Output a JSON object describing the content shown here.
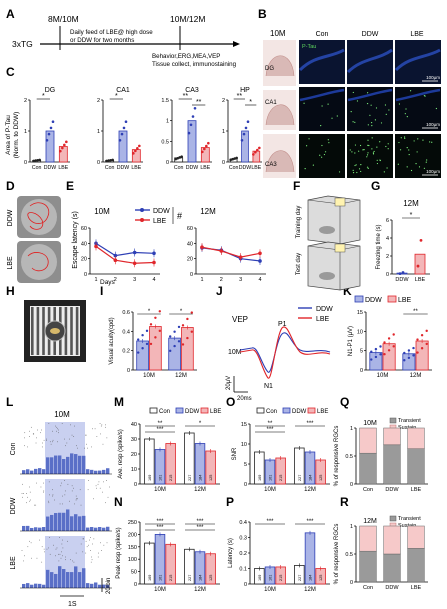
{
  "panels": {
    "A": {
      "letter": "A",
      "age_start": "8M/10M",
      "age_end": "10M/12M",
      "mouse": "3xTG",
      "feed_line1": "Daily feed of LBE@ high dose",
      "feed_line2": "or DDW for two months",
      "tests_line1": "Behavior,ERG,MEA,VEP",
      "tests_line2": "Tissue collect, immunostaining"
    },
    "B": {
      "letter": "B",
      "age": "10M",
      "columns": [
        "Con",
        "DDW",
        "LBE"
      ],
      "regions": [
        "DG",
        "CA1",
        "CA3"
      ],
      "stain": "P-Tau",
      "scale": "100μm"
    },
    "C": {
      "letter": "C",
      "ylabel1": "Area of P-Tau",
      "ylabel2": "(Norm. to DDW)"
    },
    "D": {
      "letter": "D",
      "groups": [
        "DDW",
        "LBE"
      ]
    },
    "E": {
      "letter": "E",
      "ylabel": "Escape latency (s)",
      "xlabel": "Days",
      "hash": "#"
    },
    "F": {
      "letter": "F",
      "rows": [
        "Training day",
        "Test day"
      ]
    },
    "G": {
      "letter": "G"
    },
    "H": {
      "letter": "H"
    },
    "I": {
      "letter": "I"
    },
    "J": {
      "letter": "J",
      "title": "VEP",
      "peak_p1": "P1",
      "peak_n1": "N1",
      "age": "10M",
      "scale_y": "20μV",
      "scale_x": "20ms"
    },
    "K": {
      "letter": "K"
    },
    "L": {
      "letter": "L",
      "age": "10M",
      "rows": [
        "Con",
        "DDW",
        "LBE"
      ],
      "scale_y": "20/bin",
      "scale_x": "1S"
    },
    "M": {
      "letter": "M"
    },
    "N": {
      "letter": "N"
    },
    "O": {
      "letter": "O"
    },
    "P": {
      "letter": "P"
    },
    "Q": {
      "letter": "Q"
    },
    "R": {
      "letter": "R"
    }
  },
  "colors": {
    "con": "#222222",
    "ddw": "#2e3fb5",
    "lbe": "#e0262b",
    "blue_fill": "#aab4e6",
    "red_fill": "#f3b6b8",
    "gray_fill": "#9a9a9a",
    "pink_fill": "#f6c9c9"
  },
  "chart_data": [
    {
      "panel": "C",
      "type": "bar",
      "title": "DG",
      "categories": [
        "Con",
        "DDW",
        "LBE"
      ],
      "values": [
        0.05,
        1.0,
        0.5
      ],
      "ylim": [
        0,
        2
      ],
      "yticks": [
        0,
        1,
        2
      ],
      "sig": [
        {
          "pair": [
            0,
            1
          ],
          "label": "*"
        }
      ]
    },
    {
      "panel": "C",
      "type": "bar",
      "title": "CA1",
      "categories": [
        "Con",
        "DDW",
        "LBE"
      ],
      "values": [
        0.05,
        1.0,
        0.4
      ],
      "ylim": [
        0,
        2
      ],
      "yticks": [
        0,
        1,
        2
      ],
      "sig": [
        {
          "pair": [
            0,
            1
          ],
          "label": "*"
        }
      ]
    },
    {
      "panel": "C",
      "type": "bar",
      "title": "CA3",
      "categories": [
        "Con",
        "DDW",
        "LBE"
      ],
      "values": [
        0.1,
        1.0,
        0.35
      ],
      "ylim": [
        0,
        1.5
      ],
      "yticks": [
        0.0,
        0.5,
        1.0,
        1.5
      ],
      "sig": [
        {
          "pair": [
            0,
            1
          ],
          "label": "**"
        },
        {
          "pair": [
            1,
            2
          ],
          "label": "**"
        }
      ]
    },
    {
      "panel": "C",
      "type": "bar",
      "title": "HP",
      "categories": [
        "Con",
        "DDW",
        "LBE"
      ],
      "values": [
        0.1,
        1.0,
        0.35
      ],
      "ylim": [
        0,
        2
      ],
      "yticks": [
        0,
        1,
        2
      ],
      "sig": [
        {
          "pair": [
            0,
            1
          ],
          "label": "**"
        },
        {
          "pair": [
            1,
            2
          ],
          "label": "*"
        }
      ]
    },
    {
      "panel": "E",
      "type": "line",
      "title": "10M",
      "x": [
        1,
        2,
        3,
        4
      ],
      "ylim": [
        0,
        60
      ],
      "yticks": [
        0,
        20,
        40,
        60
      ],
      "series": [
        {
          "name": "DDW",
          "values": [
            40,
            24,
            28,
            27
          ]
        },
        {
          "name": "LBE",
          "values": [
            36,
            18,
            14,
            15
          ]
        }
      ]
    },
    {
      "panel": "E",
      "type": "line",
      "title": "12M",
      "x": [
        1,
        2,
        3,
        4
      ],
      "ylim": [
        0,
        60
      ],
      "yticks": [
        0,
        20,
        40,
        60
      ],
      "series": [
        {
          "name": "DDW",
          "values": [
            34,
            31,
            20,
            17
          ]
        },
        {
          "name": "LBE",
          "values": [
            35,
            30,
            22,
            27
          ]
        }
      ]
    },
    {
      "panel": "G",
      "type": "bar",
      "title": "12M",
      "ylabel": "Freezing time (s)",
      "categories": [
        "DDW",
        "LBE"
      ],
      "values": [
        0.1,
        2.2
      ],
      "ylim": [
        0,
        6
      ],
      "yticks": [
        0,
        2,
        4,
        6
      ],
      "sig": [
        {
          "pair": [
            0,
            1
          ],
          "label": "*"
        }
      ]
    },
    {
      "panel": "I",
      "type": "bar",
      "ylabel": "Visual acuity(cpd)",
      "categories": [
        "10M",
        "12M"
      ],
      "series": [
        {
          "name": "DDW",
          "values": [
            0.3,
            0.33
          ]
        },
        {
          "name": "LBE",
          "values": [
            0.45,
            0.44
          ]
        }
      ],
      "ylim": [
        0,
        0.6
      ],
      "yticks": [
        0.0,
        0.2,
        0.4,
        0.6
      ],
      "sig_labels": [
        "*",
        "*"
      ]
    },
    {
      "panel": "K",
      "type": "bar",
      "ylabel": "N1-P1 (μV)",
      "categories": [
        "10M",
        "12M"
      ],
      "series": [
        {
          "name": "DDW",
          "values": [
            4.5,
            4.2
          ]
        },
        {
          "name": "LBE",
          "values": [
            6.8,
            7.5
          ]
        }
      ],
      "ylim": [
        0,
        15
      ],
      "yticks": [
        0,
        5,
        10,
        15
      ],
      "sig_labels": [
        "",
        "**"
      ]
    },
    {
      "panel": "M",
      "type": "bar",
      "ylabel": "Ave. resp (spike/s)",
      "categories": [
        "10M",
        "12M"
      ],
      "series": [
        {
          "name": "Con",
          "values": [
            30,
            34
          ]
        },
        {
          "name": "DDW",
          "values": [
            23,
            27
          ]
        },
        {
          "name": "LBE",
          "values": [
            27,
            22
          ]
        }
      ],
      "n_labels": [
        [
          "169",
          "101",
          "215"
        ],
        [
          "227",
          "184",
          "125"
        ]
      ],
      "ylim": [
        0,
        40
      ],
      "yticks": [
        0,
        10,
        20,
        30,
        40
      ],
      "sig_labels": [
        "**",
        "***",
        "*"
      ]
    },
    {
      "panel": "N",
      "type": "bar",
      "ylabel": "Peak resp (spike/s)",
      "categories": [
        "10M",
        "12M"
      ],
      "series": [
        {
          "name": "Con",
          "values": [
            165,
            140
          ]
        },
        {
          "name": "DDW",
          "values": [
            200,
            130
          ]
        },
        {
          "name": "LBE",
          "values": [
            160,
            122
          ]
        }
      ],
      "n_labels": [
        [
          "169",
          "101",
          "215"
        ],
        [
          "227",
          "184",
          "125"
        ]
      ],
      "ylim": [
        0,
        250
      ],
      "yticks": [
        0,
        50,
        100,
        150,
        200,
        250
      ],
      "sig_labels": [
        "***",
        "***",
        "***",
        "***"
      ]
    },
    {
      "panel": "O",
      "type": "bar",
      "ylabel": "SNR",
      "categories": [
        "10M",
        "12M"
      ],
      "series": [
        {
          "name": "Con",
          "values": [
            8,
            9
          ]
        },
        {
          "name": "DDW",
          "values": [
            6,
            8
          ]
        },
        {
          "name": "LBE",
          "values": [
            6.5,
            6
          ]
        }
      ],
      "n_labels": [
        [
          "169",
          "101",
          "215"
        ],
        [
          "227",
          "184",
          "125"
        ]
      ],
      "ylim": [
        0,
        15
      ],
      "yticks": [
        0,
        5,
        10,
        15
      ],
      "sig_labels": [
        "**",
        "***",
        "***"
      ]
    },
    {
      "panel": "P",
      "type": "bar",
      "ylabel": "Latency (s)",
      "categories": [
        "10M",
        "12M"
      ],
      "series": [
        {
          "name": "Con",
          "values": [
            0.1,
            0.12
          ]
        },
        {
          "name": "DDW",
          "values": [
            0.11,
            0.33
          ]
        },
        {
          "name": "LBE",
          "values": [
            0.11,
            0.1
          ]
        }
      ],
      "n_labels": [
        [
          "169",
          "101",
          "215"
        ],
        [
          "227",
          "184",
          "125"
        ]
      ],
      "ylim": [
        0,
        0.4
      ],
      "yticks": [
        0.0,
        0.1,
        0.2,
        0.3,
        0.4
      ],
      "sig_labels": [
        "***",
        "***"
      ]
    },
    {
      "panel": "Q",
      "type": "bar",
      "title": "10M",
      "ylabel": "% of responsive RGCs",
      "categories": [
        "Con",
        "DDW",
        "LBE"
      ],
      "series": [
        {
          "name": "Transient",
          "values": [
            0.55,
            0.7,
            0.63
          ]
        },
        {
          "name": "Sustain",
          "values": [
            0.45,
            0.3,
            0.37
          ]
        }
      ],
      "ylim": [
        0,
        1
      ],
      "yticks": [
        0.0,
        0.5,
        1.0
      ]
    },
    {
      "panel": "R",
      "type": "bar",
      "title": "12M",
      "ylabel": "% of responsive RGCs",
      "categories": [
        "Con",
        "DDW",
        "LBE"
      ],
      "series": [
        {
          "name": "Transient",
          "values": [
            0.55,
            0.5,
            0.6
          ]
        },
        {
          "name": "Sustain",
          "values": [
            0.45,
            0.5,
            0.4
          ]
        }
      ],
      "ylim": [
        0,
        1
      ],
      "yticks": [
        0.0,
        0.5,
        1.0
      ]
    }
  ]
}
